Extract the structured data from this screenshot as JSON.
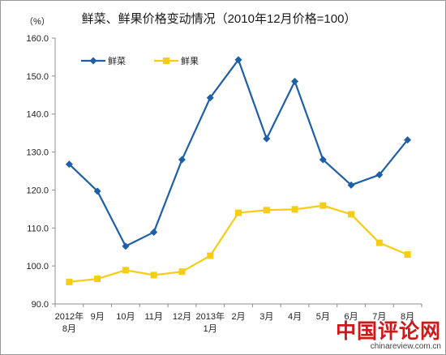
{
  "chart_data": {
    "type": "line",
    "title": "鲜菜、鲜果价格变动情况（2010年12月价格=100）",
    "ylabel": "（%）",
    "ylim": [
      90,
      160
    ],
    "yticks": [
      "90.0",
      "100.0",
      "110.0",
      "120.0",
      "130.0",
      "140.0",
      "150.0",
      "160.0"
    ],
    "categories": [
      [
        "2012年",
        "8月"
      ],
      [
        "9月"
      ],
      [
        "10月"
      ],
      [
        "11月"
      ],
      [
        "12月"
      ],
      [
        "2013年",
        "1月"
      ],
      [
        "2月"
      ],
      [
        "3月"
      ],
      [
        "4月"
      ],
      [
        "5月"
      ],
      [
        "6月"
      ],
      [
        "7月"
      ],
      [
        "8月"
      ]
    ],
    "series": [
      {
        "name": "鲜菜",
        "color": "#1e5fa8",
        "marker": "diamond",
        "values": [
          126.8,
          119.7,
          105.2,
          108.9,
          128.0,
          144.3,
          154.3,
          133.5,
          148.6,
          128.0,
          121.3,
          124.0,
          133.2
        ]
      },
      {
        "name": "鲜果",
        "color": "#f5cc16",
        "marker": "square",
        "values": [
          95.8,
          96.6,
          98.9,
          97.6,
          98.5,
          102.7,
          114.0,
          114.7,
          114.9,
          115.9,
          113.6,
          106.1,
          103.0
        ]
      }
    ],
    "legend_position": "top-left",
    "grid": false
  },
  "watermark": {
    "main": "中国评论网",
    "url": "chinareview.com.cn"
  }
}
